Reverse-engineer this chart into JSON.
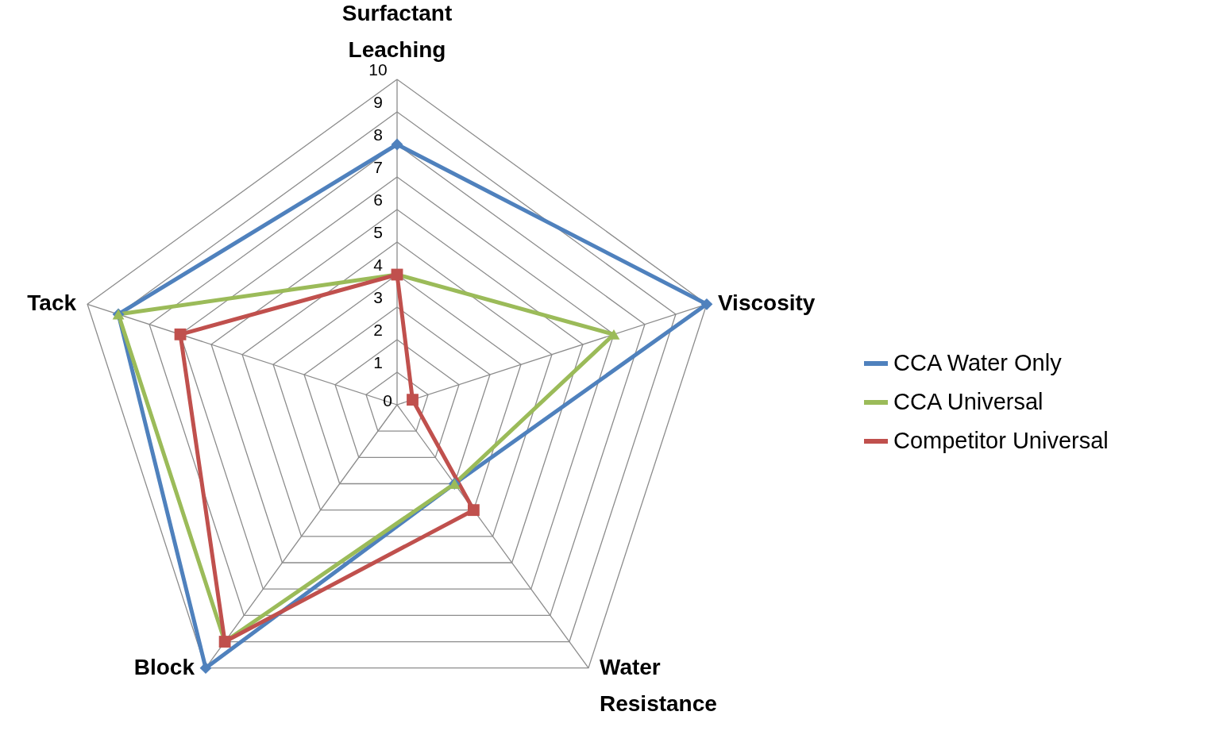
{
  "chart_data": {
    "type": "radar",
    "categories": [
      "Surfactant Leaching",
      "Viscosity",
      "Water Resistance",
      "Block",
      "Tack"
    ],
    "ylim": [
      0,
      10
    ],
    "yticks": [
      0,
      1,
      2,
      3,
      4,
      5,
      6,
      7,
      8,
      9,
      10
    ],
    "grid": true,
    "legend": "right",
    "series": [
      {
        "name": "CCA Water Only",
        "color": "#4f81bd",
        "marker": "diamond",
        "values": [
          8,
          10,
          3,
          10,
          9
        ]
      },
      {
        "name": "CCA Universal",
        "color": "#9bbb59",
        "marker": "triangle",
        "values": [
          4,
          7,
          3,
          9,
          9
        ]
      },
      {
        "name": "Competitor Universal",
        "color": "#c0504d",
        "marker": "square",
        "values": [
          4,
          0.5,
          4,
          9,
          7
        ]
      }
    ]
  }
}
